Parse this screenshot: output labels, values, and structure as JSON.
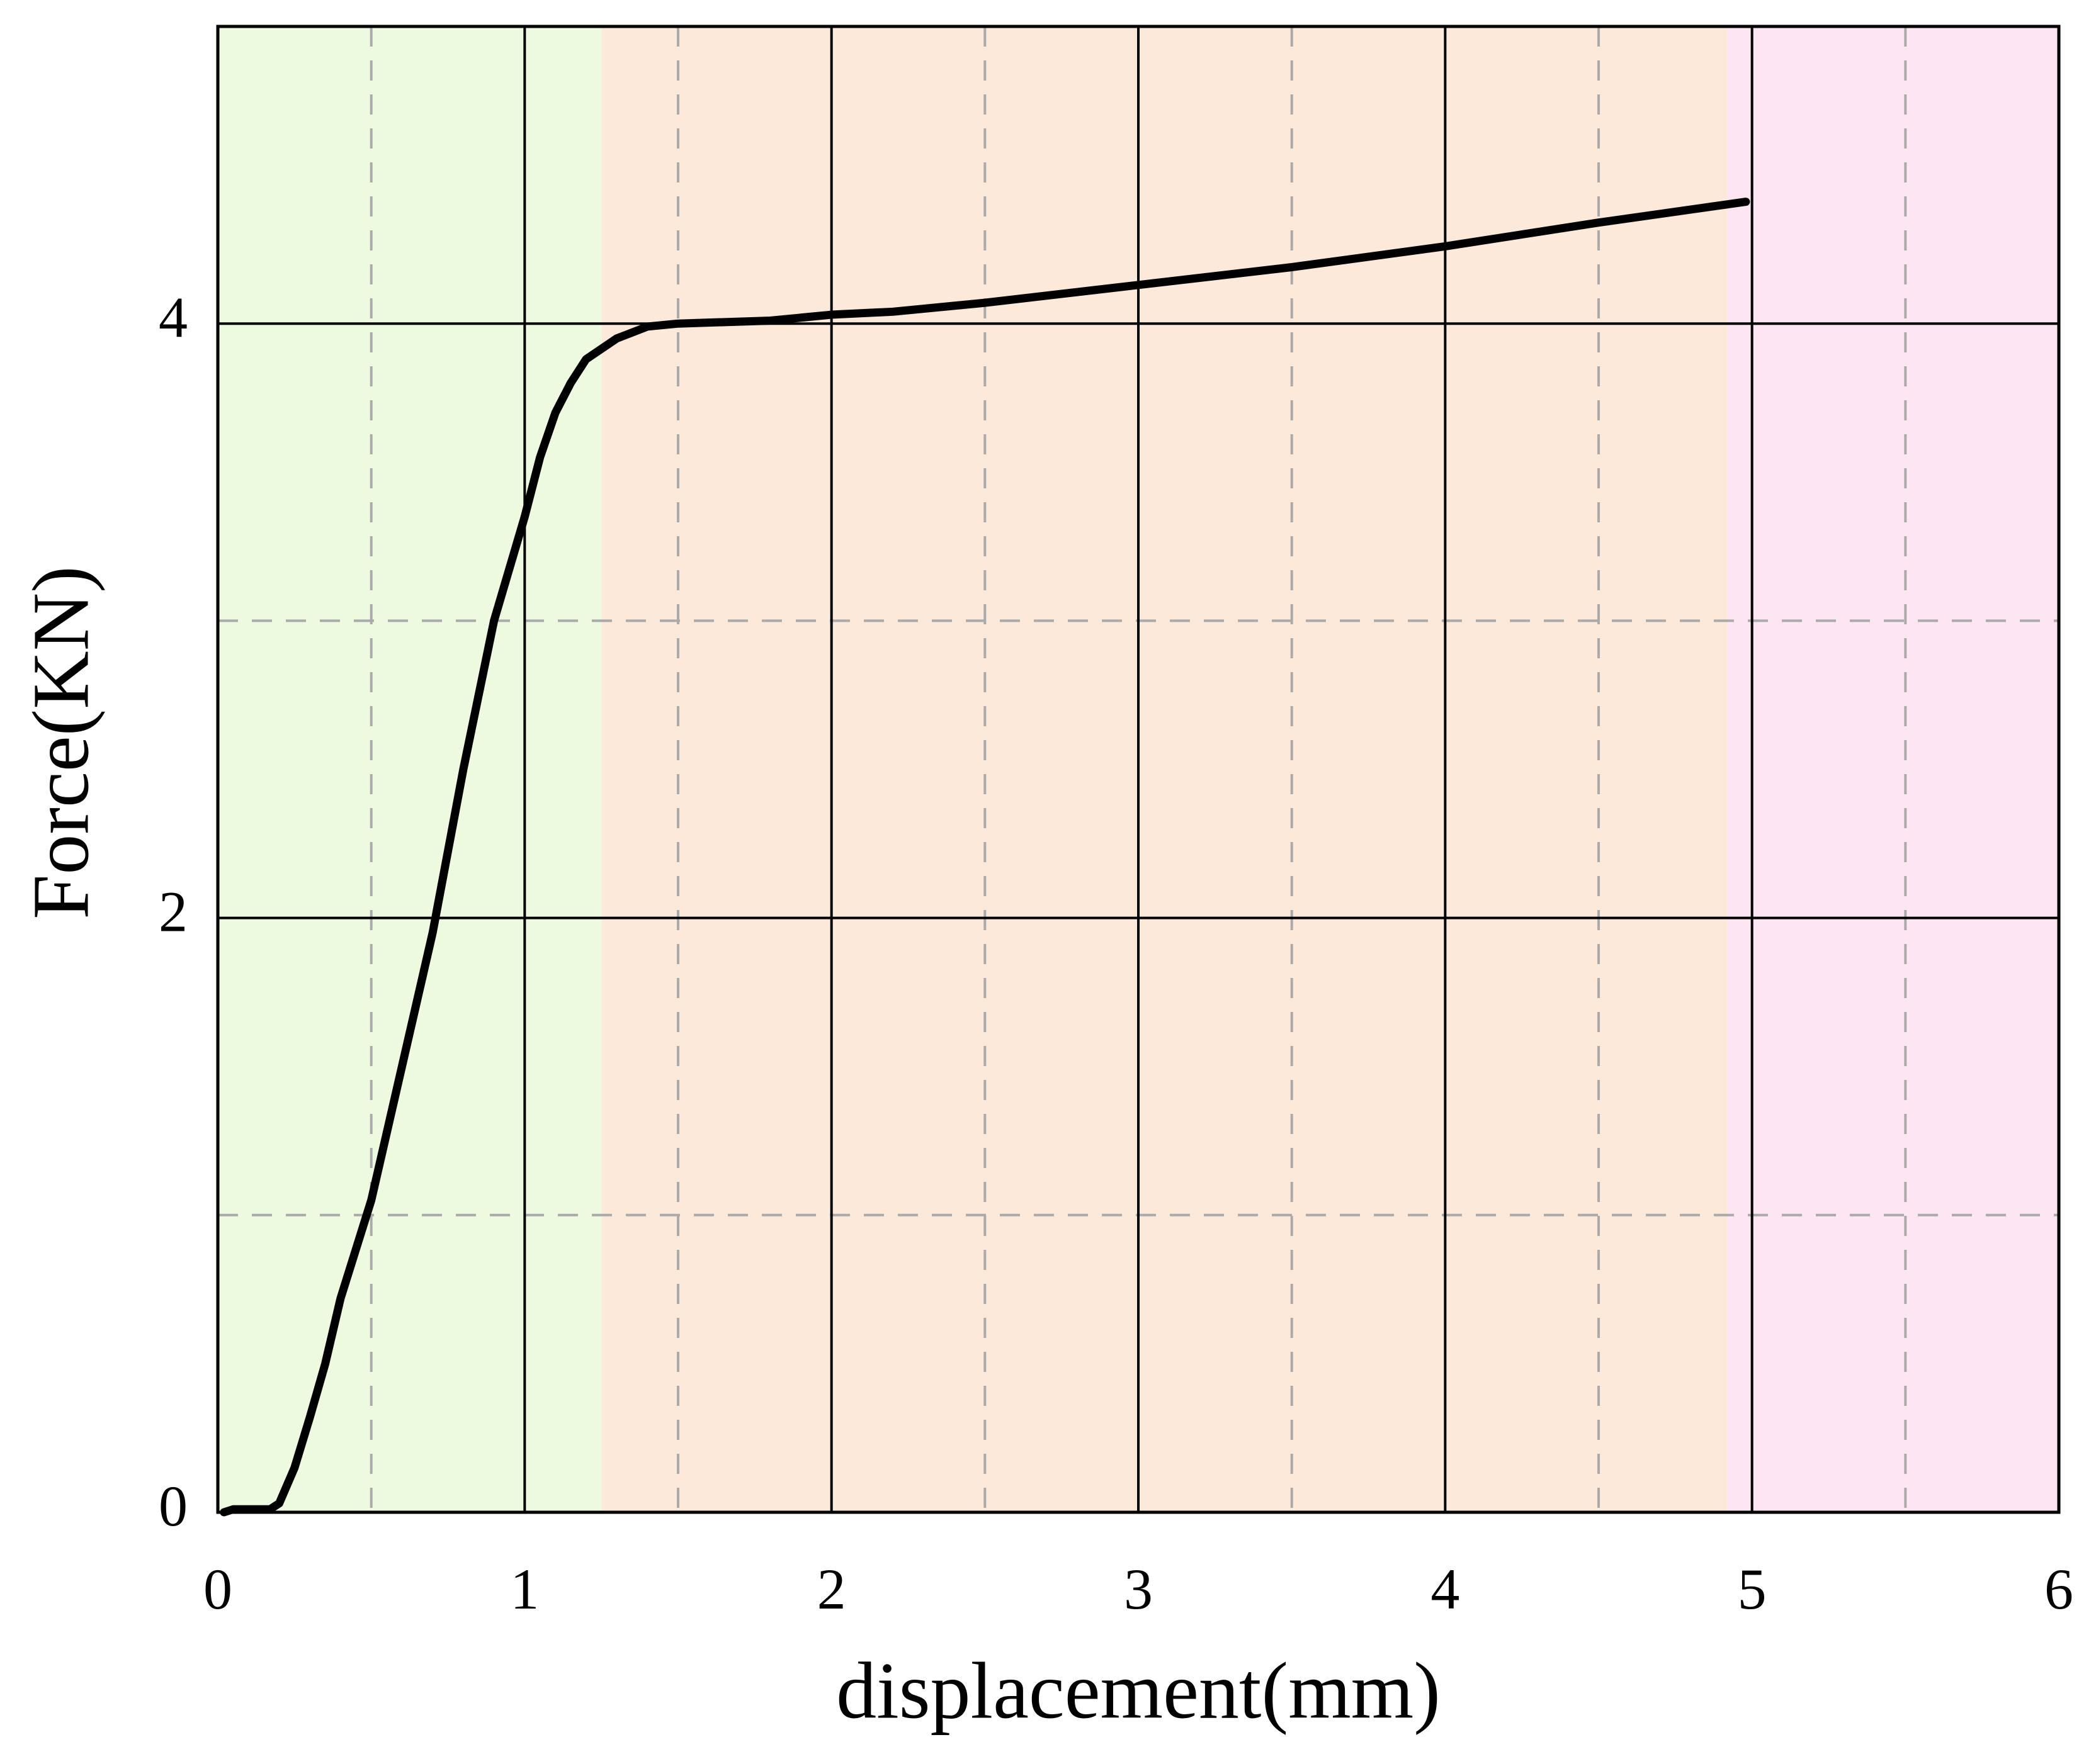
{
  "chart_data": {
    "type": "line",
    "x_label": "displacement(mm)",
    "y_label": "Force(KN)",
    "xlim": [
      0,
      6
    ],
    "ylim": [
      0,
      5
    ],
    "xticks": [
      0,
      1,
      2,
      3,
      4,
      5,
      6
    ],
    "yticks": [
      0,
      2,
      4
    ],
    "xminor": [
      0.5,
      1.5,
      2.5,
      3.5,
      4.5,
      5.5
    ],
    "yminor": [
      1,
      3
    ],
    "grid": true,
    "regions": [
      {
        "from": 0,
        "to": 1.25,
        "color": "#eefadf"
      },
      {
        "from": 1.25,
        "to": 4.92,
        "color": "#fde9da"
      },
      {
        "from": 4.92,
        "to": 6,
        "color": "#fde6f2"
      }
    ],
    "x": [
      0.02,
      0.05,
      0.17,
      0.2,
      0.25,
      0.3,
      0.35,
      0.4,
      0.5,
      0.6,
      0.7,
      0.8,
      0.9,
      1.0,
      1.05,
      1.1,
      1.15,
      1.2,
      1.3,
      1.4,
      1.5,
      1.8,
      2.0,
      2.2,
      2.5,
      3.0,
      3.5,
      4.0,
      4.5,
      4.98
    ],
    "series": [
      {
        "color": "#000000",
        "values": [
          0,
          0.01,
          0.01,
          0.03,
          0.15,
          0.32,
          0.5,
          0.72,
          1.05,
          1.5,
          1.95,
          2.5,
          3.0,
          3.35,
          3.55,
          3.7,
          3.8,
          3.88,
          3.95,
          3.99,
          4.0,
          4.01,
          4.03,
          4.04,
          4.07,
          4.13,
          4.19,
          4.26,
          4.34,
          4.41
        ]
      }
    ]
  }
}
